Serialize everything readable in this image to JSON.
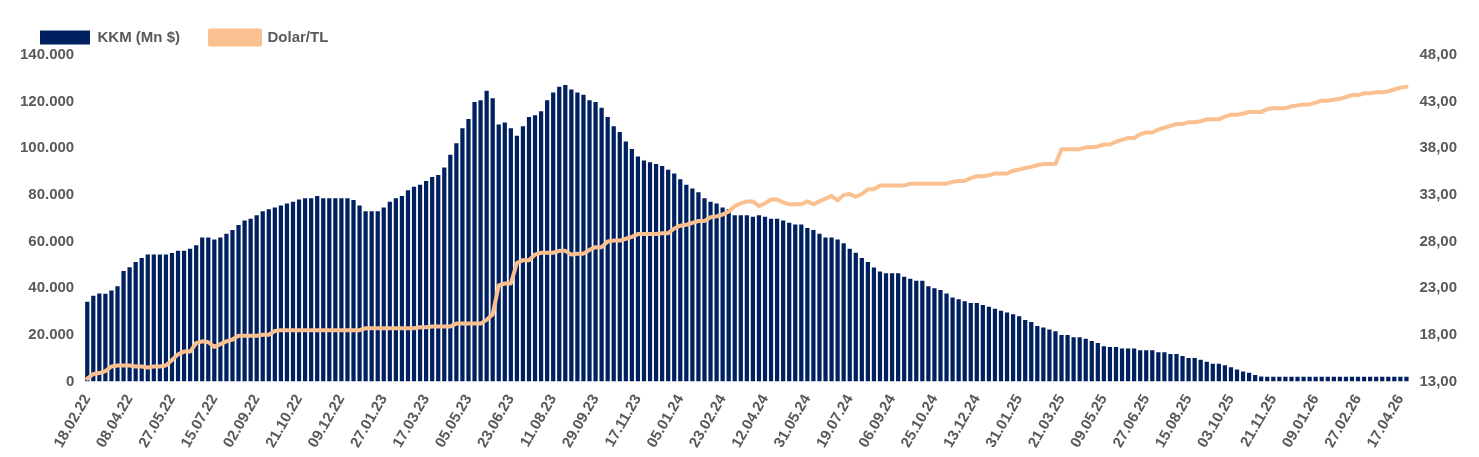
{
  "chart_data": {
    "type": "bar",
    "legend": "top left",
    "categories": [
      "18.02.22",
      null,
      null,
      null,
      null,
      null,
      null,
      "08.04.22",
      null,
      null,
      null,
      null,
      null,
      null,
      "27.05.22",
      null,
      null,
      null,
      null,
      null,
      null,
      "15.07.22",
      null,
      null,
      null,
      null,
      null,
      null,
      "02.09.22",
      null,
      null,
      null,
      null,
      null,
      null,
      "21.10.22",
      null,
      null,
      null,
      null,
      null,
      null,
      "09.12.22",
      null,
      null,
      null,
      null,
      null,
      null,
      "27.01.23",
      null,
      null,
      null,
      null,
      null,
      null,
      "17.03.23",
      null,
      null,
      null,
      null,
      null,
      null,
      "05.05.23",
      null,
      null,
      null,
      null,
      null,
      null,
      "23.06.23",
      null,
      null,
      null,
      null,
      null,
      null,
      "11.08.23",
      null,
      null,
      null,
      null,
      null,
      null,
      "29.09.23",
      null,
      null,
      null,
      null,
      null,
      null,
      "17.11.23",
      null,
      null,
      null,
      null,
      null,
      null,
      "05.01.24",
      null,
      null,
      null,
      null,
      null,
      null,
      "23.02.24",
      null,
      null,
      null,
      null,
      null,
      null,
      "12.04.24",
      null,
      null,
      null,
      null,
      null,
      null,
      "31.05.24",
      null,
      null,
      null,
      null,
      null,
      null,
      "19.07.24",
      null,
      null,
      null,
      null,
      null,
      null,
      "06.09.24",
      null,
      null,
      null,
      null,
      null,
      null,
      "25.10.24",
      null,
      null,
      null,
      null,
      null,
      null,
      "13.12.24",
      null,
      null,
      null,
      null,
      null,
      null,
      "31.01.25",
      null,
      null,
      null,
      null,
      null,
      null,
      "21.03.25",
      null,
      null,
      null,
      null,
      null,
      null,
      "09.05.25",
      null,
      null,
      null,
      null,
      null,
      null,
      "27.06.25",
      null,
      null,
      null,
      null,
      null,
      null,
      "15.08.25",
      null,
      null,
      null,
      null,
      null,
      null,
      "03.10.25",
      null,
      null,
      null,
      null,
      null,
      null,
      "21.11.25",
      null,
      null,
      null,
      null,
      null,
      null,
      "09.01.26",
      null,
      null,
      null,
      null,
      null,
      null,
      "27.02.26",
      null,
      null,
      null,
      null,
      null,
      null,
      "17.04.26",
      null
    ],
    "series": [
      {
        "name": "KKM (Mn $)",
        "color": "#002060",
        "values": [
          34200,
          36700,
          37700,
          37600,
          39000,
          40800,
          47400,
          49000,
          51200,
          52900,
          54400,
          54400,
          54400,
          54400,
          55100,
          56100,
          56100,
          56900,
          58400,
          61700,
          61700,
          60900,
          61700,
          63300,
          64900,
          67100,
          69000,
          69800,
          71300,
          73000,
          73800,
          74600,
          75500,
          76300,
          77100,
          78000,
          78600,
          78600,
          79500,
          78600,
          78600,
          78600,
          78600,
          78600,
          77800,
          75500,
          73000,
          73000,
          73000,
          74600,
          77100,
          78600,
          79500,
          82000,
          83500,
          84300,
          86000,
          87700,
          88500,
          91700,
          97200,
          102100,
          108600,
          112600,
          119800,
          120600,
          124700,
          121400,
          110200,
          111000,
          108600,
          105400,
          109400,
          113400,
          114200,
          115900,
          120600,
          123900,
          126400,
          127100,
          125200,
          123900,
          123000,
          120600,
          119800,
          117400,
          113400,
          109400,
          107000,
          102900,
          99700,
          96500,
          94800,
          94000,
          93200,
          92400,
          90800,
          89200,
          86700,
          84300,
          82700,
          81100,
          78600,
          77100,
          76300,
          74600,
          73800,
          71300,
          71300,
          71300,
          70600,
          71300,
          70600,
          69800,
          69800,
          69000,
          68100,
          67300,
          67300,
          65800,
          64900,
          63300,
          61700,
          61700,
          60900,
          59300,
          56900,
          55200,
          52900,
          51200,
          48900,
          47200,
          46400,
          46400,
          46400,
          44900,
          44000,
          43200,
          43200,
          40800,
          40000,
          39200,
          37700,
          36000,
          35200,
          34400,
          33600,
          33600,
          32800,
          32000,
          31200,
          30300,
          29600,
          28800,
          28000,
          26300,
          25500,
          23800,
          23100,
          22300,
          21500,
          19900,
          19900,
          19000,
          19000,
          18300,
          17300,
          16500,
          15100,
          14800,
          14800,
          14100,
          14100,
          14100,
          13400,
          13400,
          13400,
          12500,
          12500,
          11800,
          11800,
          10900,
          10000,
          10000,
          9300,
          8400,
          7600,
          7600,
          6900,
          6100,
          5100,
          4300,
          3700,
          2800,
          2100,
          2000,
          2000,
          2000,
          2000,
          2000,
          2000,
          2000,
          2000,
          2000,
          2000,
          2000,
          2000,
          2000,
          2000,
          2000,
          2000,
          2000,
          2000,
          2000,
          2000,
          2000,
          2000,
          2000,
          2000
        ]
      },
      {
        "name": "Dolar/TL",
        "type": "line",
        "axis": "y2",
        "color": "#fac090",
        "values": [
          13.3,
          13.8,
          13.9,
          14.1,
          14.6,
          14.7,
          14.7,
          14.7,
          14.6,
          14.6,
          14.5,
          14.6,
          14.6,
          14.7,
          15.3,
          15.9,
          16.2,
          16.2,
          17.1,
          17.3,
          17.2,
          16.7,
          17.0,
          17.3,
          17.5,
          17.9,
          17.9,
          17.9,
          17.9,
          18.0,
          18.0,
          18.4,
          18.5,
          18.5,
          18.5,
          18.5,
          18.5,
          18.5,
          18.5,
          18.5,
          18.5,
          18.5,
          18.5,
          18.5,
          18.5,
          18.5,
          18.7,
          18.7,
          18.7,
          18.7,
          18.7,
          18.7,
          18.7,
          18.7,
          18.7,
          18.8,
          18.8,
          18.9,
          18.9,
          18.9,
          18.9,
          19.2,
          19.2,
          19.2,
          19.2,
          19.2,
          19.6,
          20.2,
          23.3,
          23.5,
          23.5,
          25.7,
          26.0,
          26.0,
          26.6,
          26.8,
          26.8,
          26.8,
          27.0,
          27.0,
          26.6,
          26.7,
          26.7,
          27.1,
          27.4,
          27.4,
          28.0,
          28.1,
          28.1,
          28.3,
          28.5,
          28.8,
          28.8,
          28.8,
          28.8,
          28.9,
          28.9,
          29.4,
          29.7,
          29.8,
          30.0,
          30.2,
          30.2,
          30.6,
          30.7,
          30.9,
          31.2,
          31.8,
          32.1,
          32.3,
          32.3,
          31.8,
          32.1,
          32.5,
          32.5,
          32.2,
          32.0,
          32.0,
          32.0,
          32.3,
          32.0,
          32.3,
          32.6,
          32.9,
          32.4,
          33.0,
          33.1,
          32.8,
          33.1,
          33.6,
          33.6,
          34.0,
          34.0,
          34.0,
          34.0,
          34.0,
          34.2,
          34.2,
          34.2,
          34.2,
          34.2,
          34.2,
          34.2,
          34.4,
          34.5,
          34.5,
          34.8,
          35.0,
          35.0,
          35.1,
          35.3,
          35.3,
          35.3,
          35.6,
          35.7,
          35.9,
          36.0,
          36.2,
          36.3,
          36.3,
          36.3,
          37.9,
          37.9,
          37.9,
          37.9,
          38.1,
          38.1,
          38.2,
          38.4,
          38.4,
          38.7,
          38.9,
          39.1,
          39.1,
          39.5,
          39.7,
          39.7,
          40.0,
          40.2,
          40.4,
          40.6,
          40.6,
          40.8,
          40.8,
          40.9,
          41.1,
          41.1,
          41.1,
          41.4,
          41.6,
          41.6,
          41.7,
          41.9,
          41.9,
          41.9,
          42.2,
          42.3,
          42.3,
          42.3,
          42.5,
          42.6,
          42.7,
          42.7,
          42.9,
          43.1,
          43.1,
          43.2,
          43.3,
          43.5,
          43.7,
          43.7,
          43.9,
          43.9,
          44.0,
          44.0,
          44.1,
          44.3,
          44.5,
          44.6
        ]
      }
    ],
    "ylim": [
      0,
      140000
    ],
    "yticks": [
      {
        "value": 0,
        "label": "0"
      },
      {
        "value": 20000,
        "label": "20.000"
      },
      {
        "value": 40000,
        "label": "40.000"
      },
      {
        "value": 60000,
        "label": "60.000"
      },
      {
        "value": 80000,
        "label": "80.000"
      },
      {
        "value": 100000,
        "label": "100.000"
      },
      {
        "value": 120000,
        "label": "120.000"
      },
      {
        "value": 140000,
        "label": "140.000"
      }
    ],
    "y2lim": [
      13,
      48
    ],
    "y2ticks": [
      {
        "value": 13,
        "label": "13,00"
      },
      {
        "value": 18,
        "label": "18,00"
      },
      {
        "value": 23,
        "label": "23,00"
      },
      {
        "value": 28,
        "label": "28,00"
      },
      {
        "value": 33,
        "label": "33,00"
      },
      {
        "value": 38,
        "label": "38,00"
      },
      {
        "value": 43,
        "label": "43,00"
      },
      {
        "value": 48,
        "label": "48,00"
      }
    ]
  }
}
